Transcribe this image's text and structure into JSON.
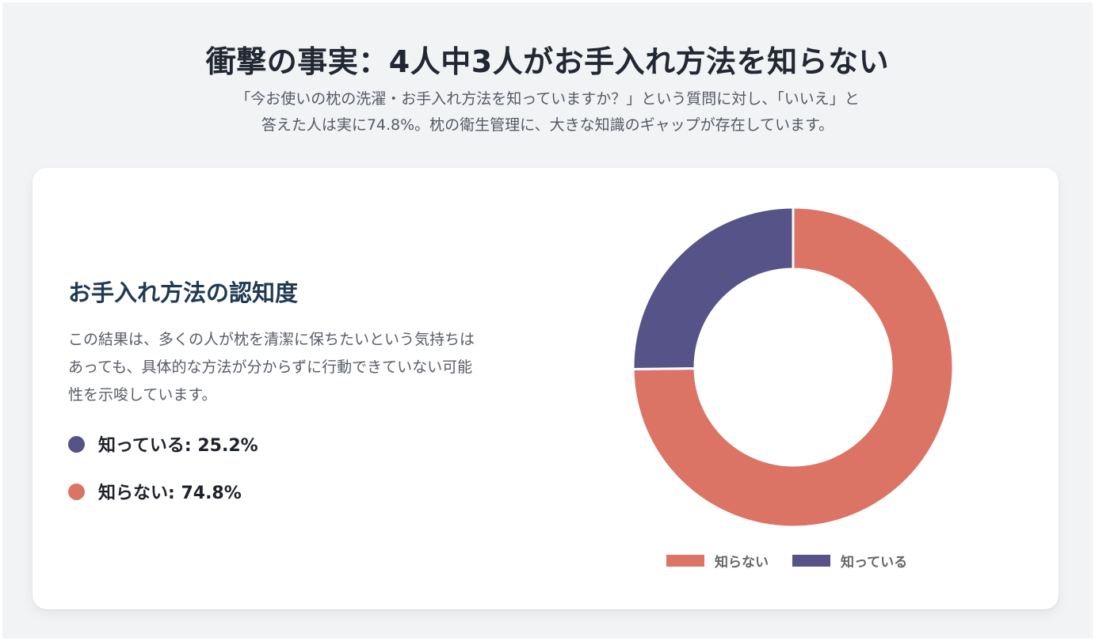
{
  "header": {
    "title": "衝撃の事実：4人中3人がお手入れ方法を知らない",
    "subtitle_line1": "「今お使いの枕の洗濯・お手入れ方法を知っていますか？」という質問に対し、「いいえ」と",
    "subtitle_line2": "答えた人は実に74.8%。枕の衛生管理に、大きな知識のギャップが存在しています。"
  },
  "card": {
    "section_title": "お手入れ方法の認知度",
    "body_line1": "この結果は、多くの人が枕を清潔に保ちたいという気持ちは",
    "body_line2": "あっても、具体的な方法が分からずに行動できていない可能",
    "body_line3": "性を示唆しています。",
    "stats": [
      {
        "label": "知っている: 25.2%",
        "color": "#555387"
      },
      {
        "label": "知らない: 74.8%",
        "color": "#db7464"
      }
    ]
  },
  "legend": [
    {
      "label": "知らない",
      "color": "#db7464"
    },
    {
      "label": "知っている",
      "color": "#555387"
    }
  ],
  "chart_data": {
    "type": "pie",
    "variant": "doughnut",
    "title": "お手入れ方法の認知度",
    "categories": [
      "知らない",
      "知っている"
    ],
    "values": [
      74.8,
      25.2
    ],
    "unit": "%",
    "colors": [
      "#db7464",
      "#555387"
    ],
    "legend_position": "bottom",
    "start_angle": "top, clockwise"
  }
}
